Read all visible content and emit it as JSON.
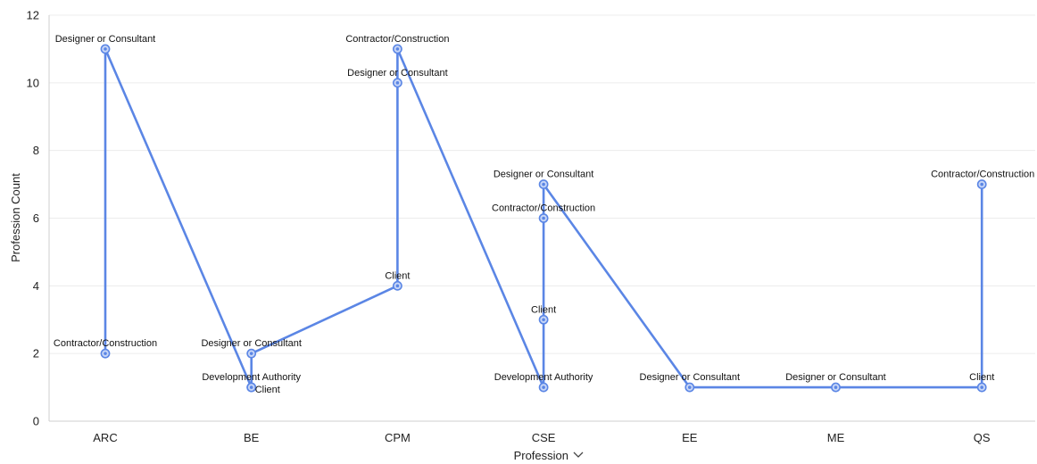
{
  "colors": {
    "series": "#5b86e5",
    "point_fill": "#c7d6f7",
    "point_inner": "#5b86e5"
  },
  "chart_data": {
    "type": "line",
    "xlabel": "Profession",
    "xlabel_icon": "chevron-down-icon",
    "ylabel": "Profession Count",
    "categories": [
      "ARC",
      "BE",
      "CPM",
      "CSE",
      "EE",
      "ME",
      "QS"
    ],
    "ylim": [
      0,
      12
    ],
    "yticks": [
      0,
      2,
      4,
      6,
      8,
      10,
      12
    ],
    "grid": true,
    "points": [
      {
        "x": "ARC",
        "y": 2,
        "label": "Contractor/Construction"
      },
      {
        "x": "ARC",
        "y": 11,
        "label": "Designer or Consultant"
      },
      {
        "x": "BE",
        "y": 1,
        "label": "Development Authority"
      },
      {
        "x": "BE",
        "y": 1,
        "label": "Client"
      },
      {
        "x": "BE",
        "y": 2,
        "label": "Designer or Consultant"
      },
      {
        "x": "CPM",
        "y": 4,
        "label": "Client"
      },
      {
        "x": "CPM",
        "y": 10,
        "label": "Designer or Consultant"
      },
      {
        "x": "CPM",
        "y": 11,
        "label": "Contractor/Construction"
      },
      {
        "x": "CSE",
        "y": 1,
        "label": "Development Authority"
      },
      {
        "x": "CSE",
        "y": 3,
        "label": "Client"
      },
      {
        "x": "CSE",
        "y": 6,
        "label": "Contractor/Construction"
      },
      {
        "x": "CSE",
        "y": 7,
        "label": "Designer or Consultant"
      },
      {
        "x": "EE",
        "y": 1,
        "label": "Designer or Consultant"
      },
      {
        "x": "ME",
        "y": 1,
        "label": "Designer or Consultant"
      },
      {
        "x": "QS",
        "y": 1,
        "label": "Client"
      },
      {
        "x": "QS",
        "y": 7,
        "label": "Contractor/Construction"
      }
    ]
  }
}
